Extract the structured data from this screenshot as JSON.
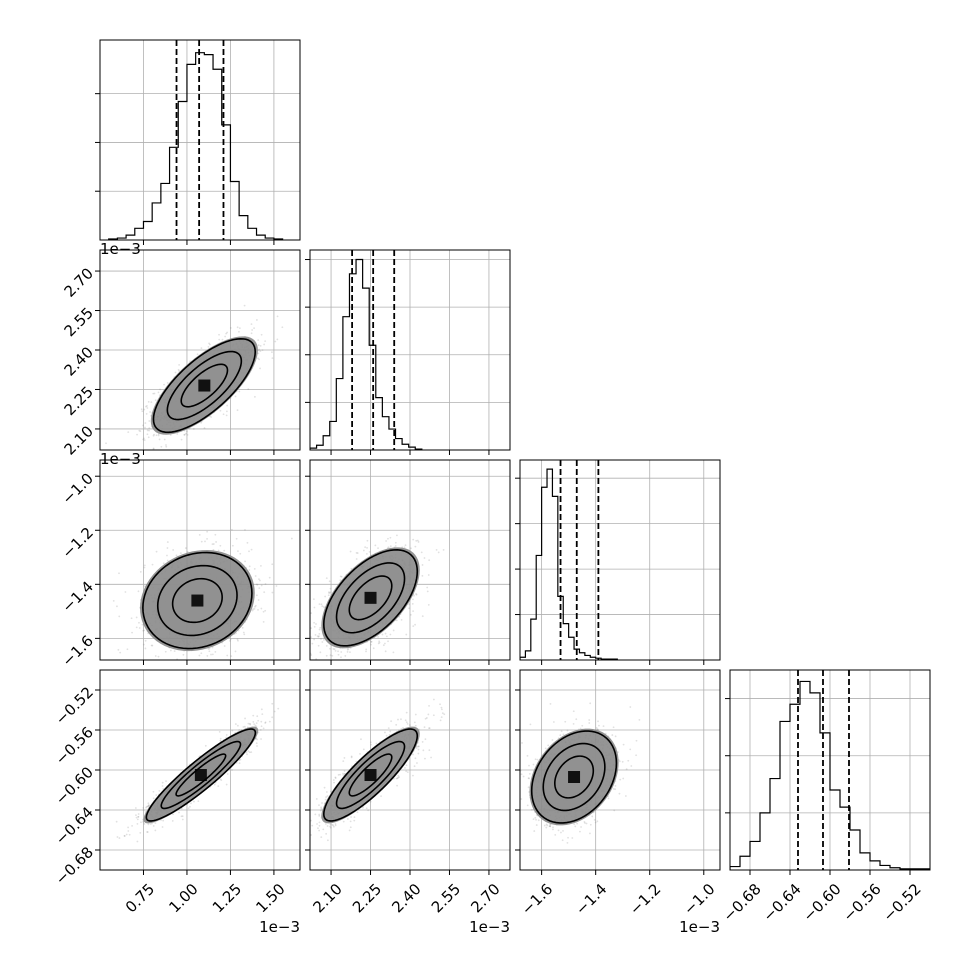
{
  "chart_data": {
    "type": "corner",
    "parameters": [
      {
        "id": "p0",
        "range": [
          0.5,
          1.65
        ],
        "ticks": [
          0.75,
          1.0,
          1.25,
          1.5
        ],
        "tick_labels": [
          "0.75",
          "1.00",
          "1.25",
          "1.50"
        ],
        "offset_text": "1e−3",
        "quantiles": [
          0.94,
          1.07,
          1.21
        ],
        "histogram": {
          "bin_start": 0.55,
          "bin_width": 0.05,
          "counts": [
            1,
            2,
            5,
            12,
            19,
            38,
            58,
            95,
            142,
            180,
            192,
            190,
            175,
            118,
            60,
            25,
            12,
            5,
            2,
            1
          ]
        },
        "hist_ymax": 205,
        "hist_gridlines": [
          50,
          100,
          150
        ]
      },
      {
        "id": "p1",
        "range": [
          2.02,
          2.78
        ],
        "ticks": [
          2.1,
          2.25,
          2.4,
          2.55,
          2.7
        ],
        "tick_labels": [
          "2.10",
          "2.25",
          "2.40",
          "2.55",
          "2.70"
        ],
        "offset_text": "1e−3",
        "quantiles": [
          2.18,
          2.26,
          2.34
        ],
        "histogram": {
          "bin_start": 2.02,
          "bin_width": 0.025,
          "counts": [
            2,
            5,
            15,
            30,
            75,
            140,
            185,
            200,
            170,
            110,
            55,
            35,
            22,
            12,
            6,
            3,
            1
          ]
        },
        "hist_ymax": 210,
        "hist_gridlines": [
          50,
          100,
          150,
          200
        ]
      },
      {
        "id": "p2",
        "range": [
          -1.68,
          -0.94
        ],
        "ticks": [
          -1.6,
          -1.4,
          -1.2,
          -1.0
        ],
        "tick_labels": [
          "−1.6",
          "−1.4",
          "−1.2",
          "−1.0"
        ],
        "offset_text": "1e−3",
        "quantiles": [
          -1.53,
          -1.47,
          -1.39
        ],
        "histogram": {
          "bin_start": -1.68,
          "bin_width": 0.02,
          "counts": [
            3,
            10,
            45,
            115,
            190,
            210,
            180,
            70,
            40,
            25,
            12,
            8,
            5,
            3,
            2,
            1,
            1,
            1
          ]
        },
        "hist_ymax": 220,
        "hist_gridlines": [
          50,
          100,
          150,
          200
        ]
      },
      {
        "id": "p3",
        "range": [
          -0.7,
          -0.5
        ],
        "ticks": [
          -0.68,
          -0.64,
          -0.6,
          -0.56,
          -0.52
        ],
        "tick_labels": [
          "−0.68",
          "−0.64",
          "−0.60",
          "−0.56",
          "−0.52"
        ],
        "quantiles": [
          -0.632,
          -0.607,
          -0.581
        ],
        "histogram": {
          "bin_start": -0.7,
          "bin_width": 0.01,
          "counts": [
            3,
            12,
            25,
            50,
            80,
            130,
            145,
            165,
            155,
            120,
            70,
            55,
            35,
            15,
            8,
            4,
            2,
            1,
            1,
            1
          ]
        },
        "hist_ymax": 175,
        "hist_gridlines": [
          50,
          100,
          150
        ]
      }
    ],
    "pairs": [
      {
        "row": "p1",
        "col": "p0",
        "center": [
          1.1,
          2.265
        ],
        "spread": [
          0.14,
          0.085
        ],
        "corr": 0.72,
        "contour_levels": [
          1.0,
          1.6,
          2.2
        ]
      },
      {
        "row": "p2",
        "col": "p0",
        "center": [
          1.06,
          -1.46
        ],
        "spread": [
          0.15,
          0.085
        ],
        "corr": 0.15,
        "contour_levels": [
          1.0,
          1.6,
          2.2
        ]
      },
      {
        "row": "p2",
        "col": "p1",
        "center": [
          2.25,
          -1.45
        ],
        "spread": [
          0.085,
          0.085
        ],
        "corr": 0.55,
        "contour_levels": [
          1.0,
          1.6,
          2.2
        ]
      },
      {
        "row": "p3",
        "col": "p0",
        "center": [
          1.08,
          -0.605
        ],
        "spread": [
          0.15,
          0.022
        ],
        "corr": 0.92,
        "contour_levels": [
          1.0,
          1.6,
          2.2
        ]
      },
      {
        "row": "p3",
        "col": "p1",
        "center": [
          2.25,
          -0.605
        ],
        "spread": [
          0.085,
          0.022
        ],
        "corr": 0.85,
        "contour_levels": [
          1.0,
          1.6,
          2.2
        ]
      },
      {
        "row": "p3",
        "col": "p2",
        "center": [
          -1.48,
          -0.607
        ],
        "spread": [
          0.075,
          0.022
        ],
        "corr": 0.3,
        "contour_levels": [
          1.0,
          1.6,
          2.2
        ]
      }
    ]
  }
}
